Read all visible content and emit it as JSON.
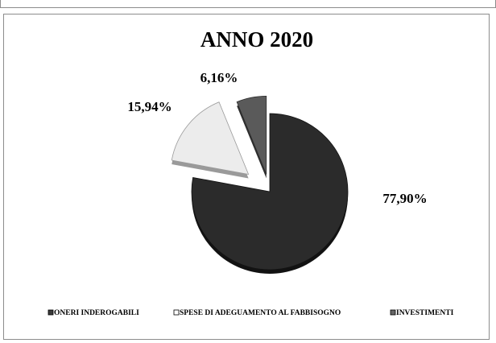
{
  "chart_data": {
    "type": "pie",
    "title": "ANNO 2020",
    "exploded": true,
    "legend_position": "bottom",
    "slices": [
      {
        "label": "ONERI INDEROGABILI",
        "value": 77.9,
        "display": "77,90%",
        "color": "#2b2b2b",
        "edge": "#121212",
        "legend_swatch": "#3a3a3a"
      },
      {
        "label": "SPESE DI ADEGUAMENTO AL FABBISOGNO",
        "value": 15.94,
        "display": "15,94%",
        "color": "#ececec",
        "edge": "#9a9a9a",
        "legend_swatch": "#ffffff"
      },
      {
        "label": "INVESTIMENTI",
        "value": 6.16,
        "display": "6,16%",
        "color": "#5a5a5a",
        "edge": "#2e2e2e",
        "legend_swatch": "#666666"
      }
    ]
  }
}
